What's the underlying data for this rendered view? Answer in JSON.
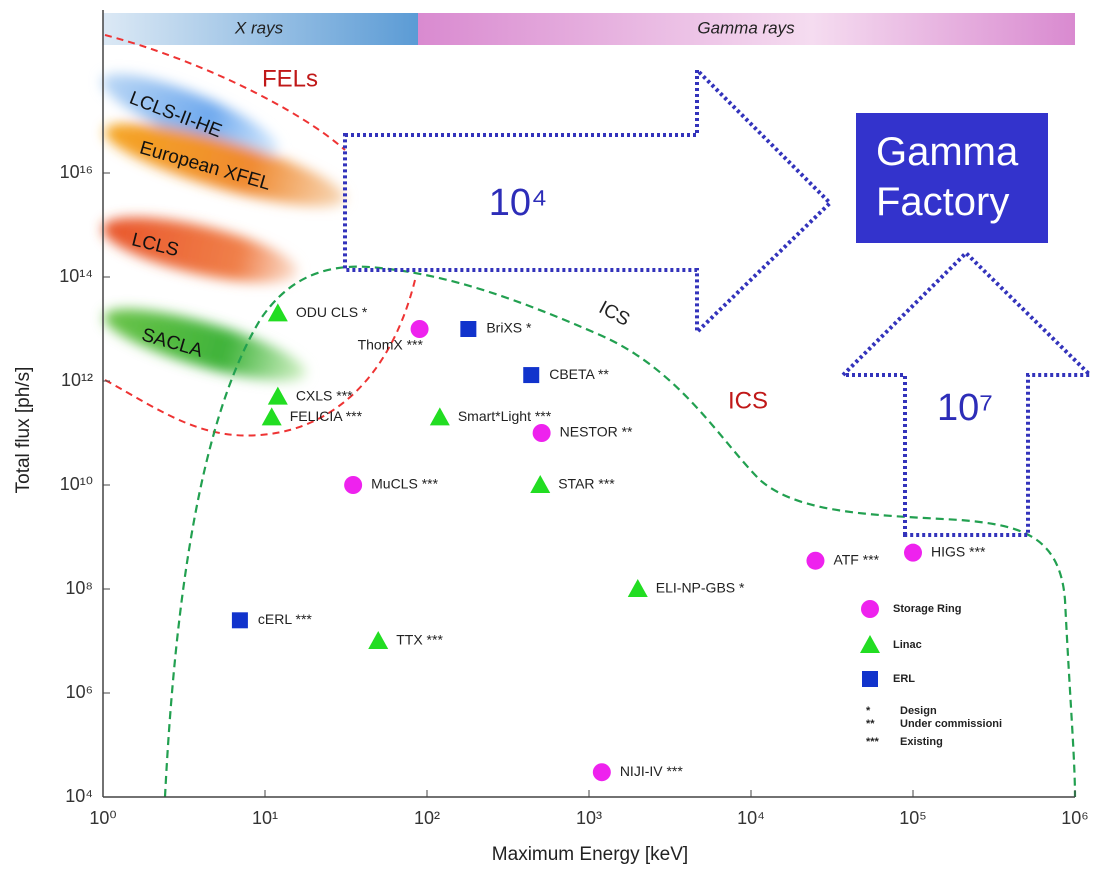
{
  "chart_data": {
    "type": "scatter",
    "xlabel": "Maximum Energy [keV]",
    "ylabel": "Total flux [ph/s]",
    "xscale": "log",
    "yscale": "log",
    "xlim": [
      1,
      1000000
    ],
    "ylim": [
      10000,
      1e+19
    ],
    "xticks": [
      {
        "value": 1,
        "label": "10⁰"
      },
      {
        "value": 10,
        "label": "10¹"
      },
      {
        "value": 100,
        "label": "10²"
      },
      {
        "value": 1000,
        "label": "10³"
      },
      {
        "value": 10000,
        "label": "10⁴"
      },
      {
        "value": 100000,
        "label": "10⁵"
      },
      {
        "value": 1000000,
        "label": "10⁶"
      }
    ],
    "yticks": [
      {
        "value": 10000,
        "label": "10⁴"
      },
      {
        "value": 1000000,
        "label": "10⁶"
      },
      {
        "value": 100000000,
        "label": "10⁸"
      },
      {
        "value": 10000000000.0,
        "label": "10¹⁰"
      },
      {
        "value": 1000000000000.0,
        "label": "10¹²"
      },
      {
        "value": 100000000000000.0,
        "label": "10¹⁴"
      },
      {
        "value": 1e+16,
        "label": "10¹⁶"
      }
    ],
    "series": [
      {
        "name": "Storage Ring",
        "color": "#ee22ee",
        "marker": "circle",
        "x": [
          90,
          510,
          35,
          25000,
          100000,
          1200
        ],
        "values": [
          10000000000000.0,
          100000000000.0,
          10000000000.0,
          350000000.0,
          500000000.0,
          30000.0
        ],
        "labels": [
          "ThomX ***",
          "NESTOR **",
          "MuCLS ***",
          "ATF ***",
          "HIGS ***",
          "NIJI-IV ***"
        ]
      },
      {
        "name": "Linac",
        "color": "#22dd22",
        "marker": "triangle",
        "x": [
          12,
          12,
          11,
          120,
          500,
          2000,
          50
        ],
        "values": [
          20000000000000.0,
          500000000000.0,
          200000000000.0,
          200000000000.0,
          10000000000.0,
          100000000.0,
          10000000.0
        ],
        "labels": [
          "ODU CLS *",
          "CXLS ***",
          "FELICIA ***",
          "Smart*Light ***",
          "STAR ***",
          "ELI-NP-GBS *",
          "TTX ***"
        ]
      },
      {
        "name": "ERL",
        "color": "#1133cc",
        "marker": "square",
        "x": [
          180,
          440,
          7
        ],
        "values": [
          10000000000000.0,
          1300000000000.0,
          25000000.0
        ],
        "labels": [
          "BriXS *",
          "CBETA **",
          "cERL ***"
        ]
      }
    ],
    "notes": [
      {
        "symbol": "*",
        "text": "Design"
      },
      {
        "symbol": "**",
        "text": "Under commissioni"
      },
      {
        "symbol": "***",
        "text": "Existing"
      }
    ],
    "annotations": {
      "x_band": "X rays",
      "gamma_band": "Gamma rays",
      "fels": "FELs",
      "ics_curve": "ICS",
      "ics_region": "ICS",
      "fel_sources": [
        "LCLS-II-HE",
        "European XFEL",
        "LCLS",
        "SACLA"
      ],
      "arrow_h": "10⁴",
      "arrow_v": "10⁷",
      "gamma_factory": "Gamma Factory"
    }
  }
}
